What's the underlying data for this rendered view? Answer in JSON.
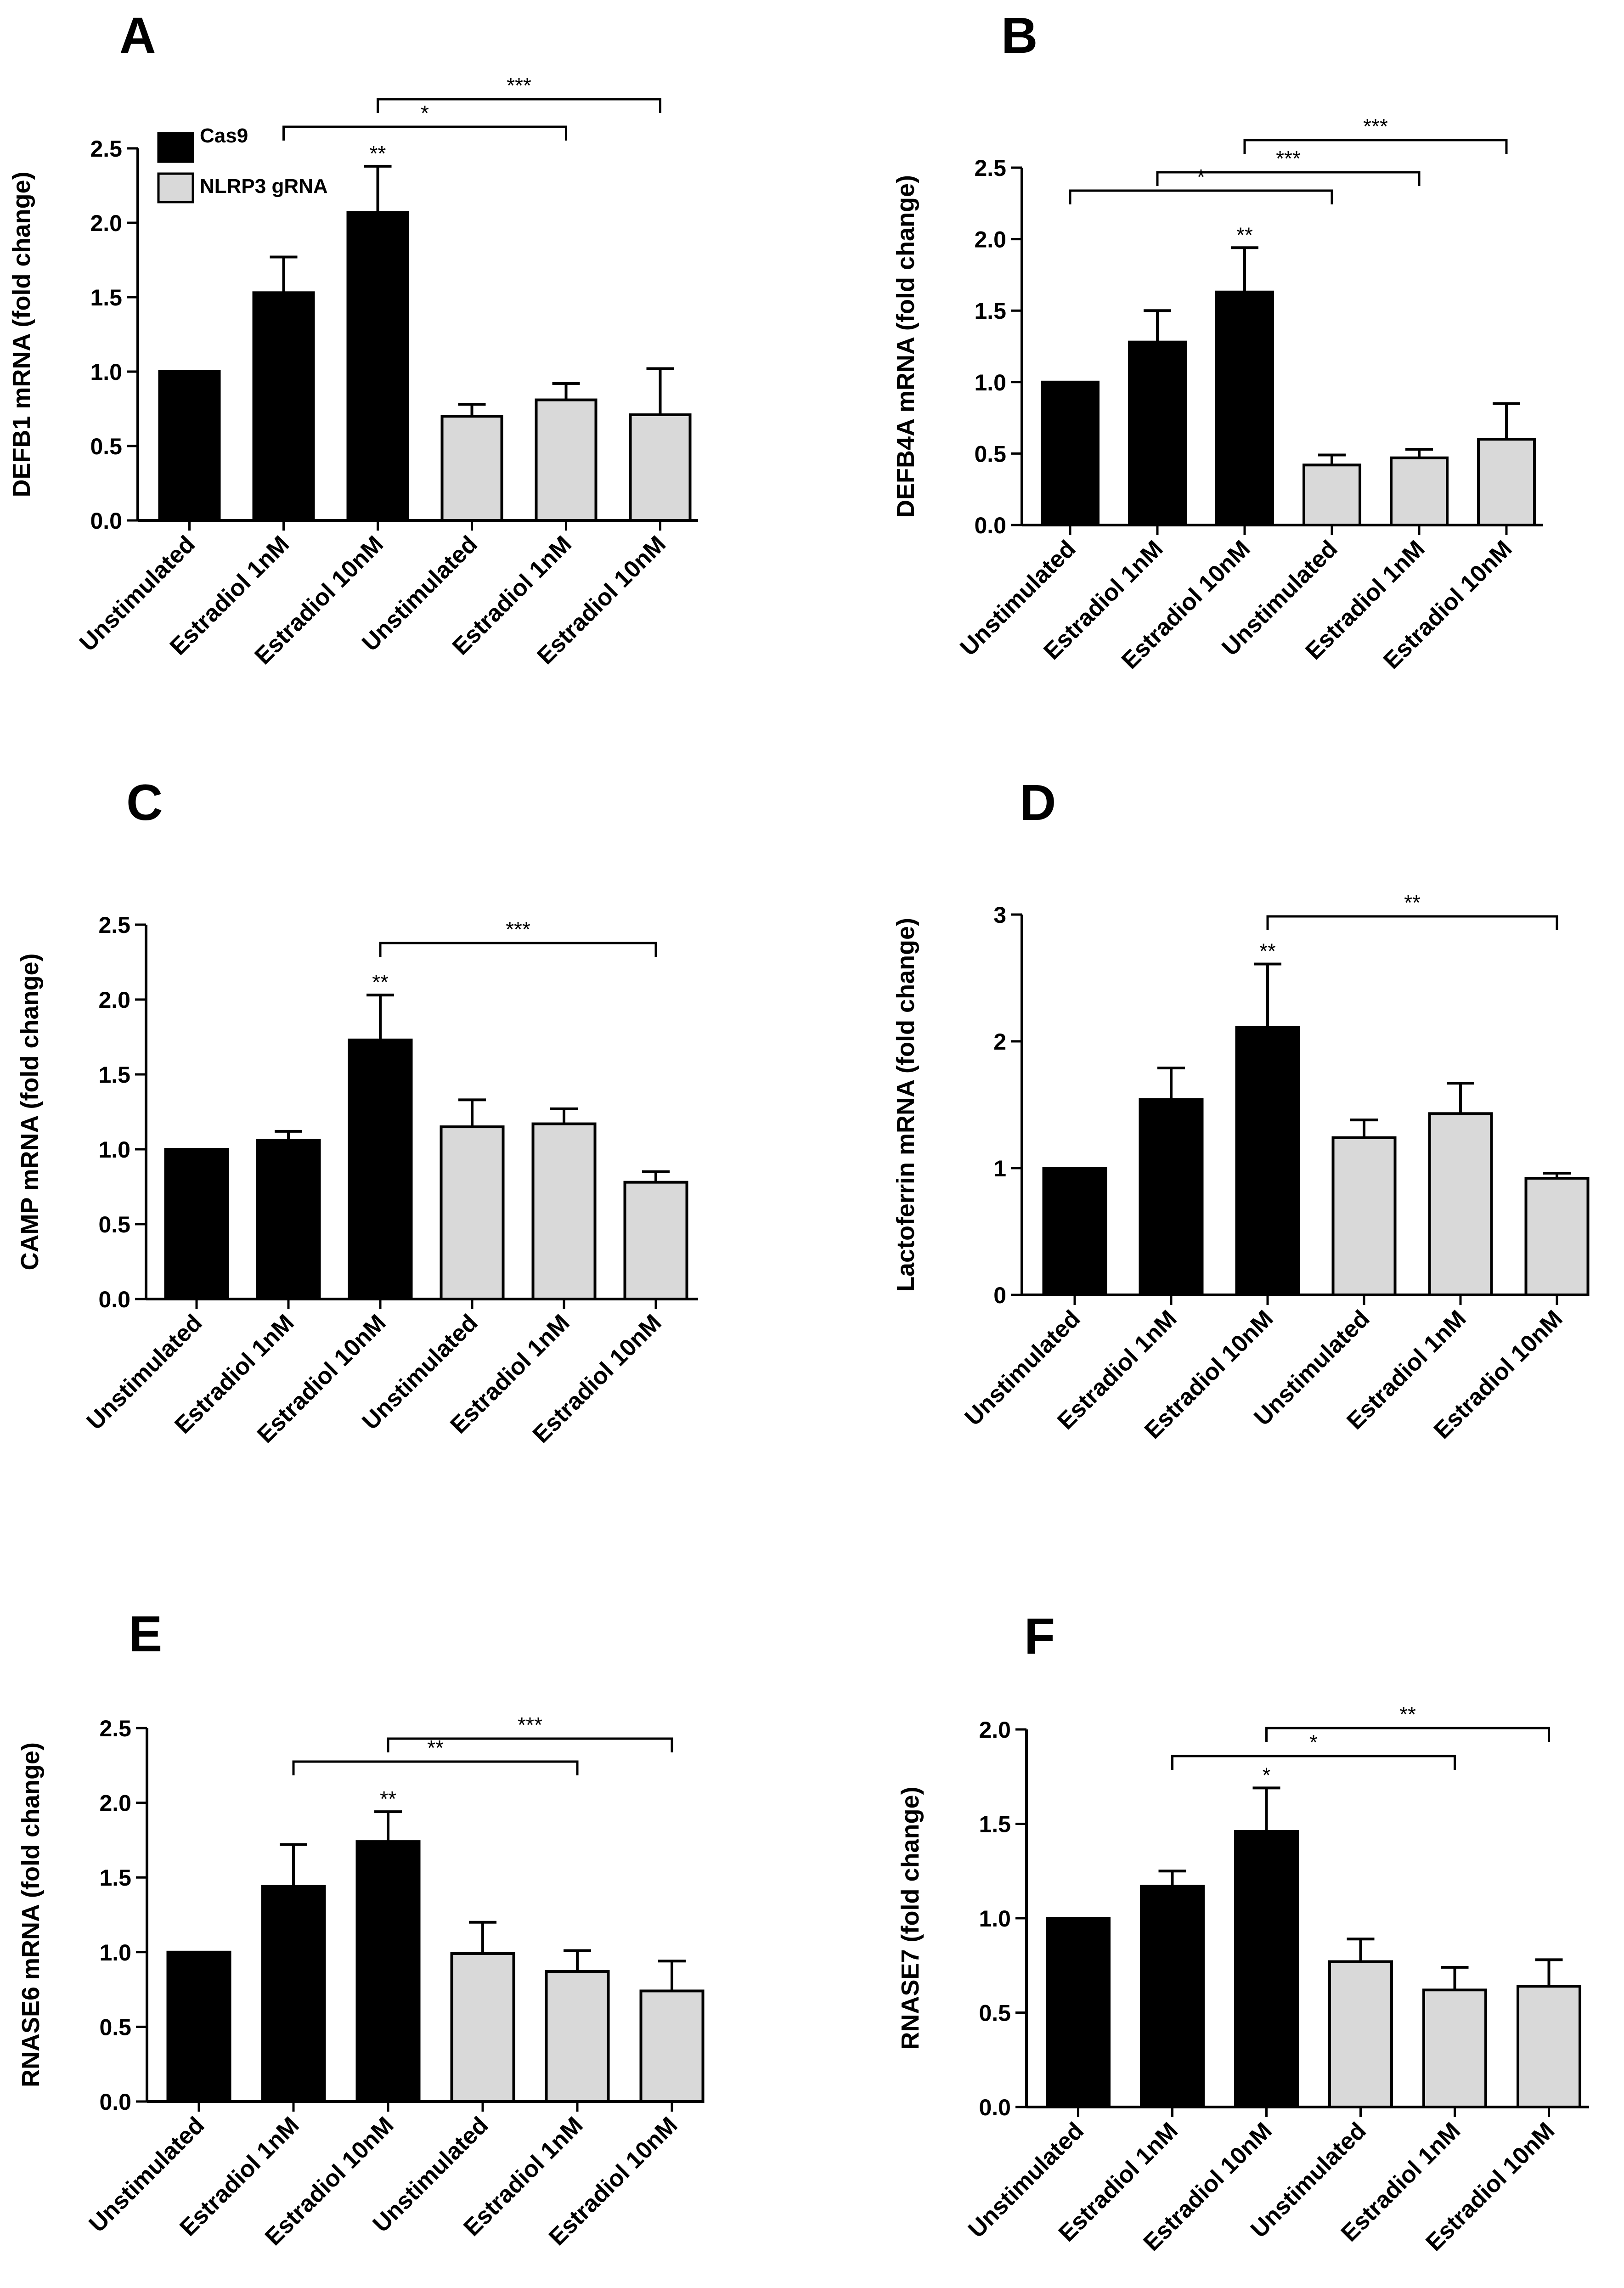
{
  "colors": {
    "cas9": "#000000",
    "nlrp3": "#d9d9d9",
    "axis": "#000000"
  },
  "legend": {
    "cas9_label": "Cas9",
    "nlrp3_label": "NLRP3 gRNA"
  },
  "chart_data": [
    {
      "panel": "A",
      "type": "bar",
      "ylabel": "DEFB1 mRNA (fold change)",
      "categories": [
        "Unstimulated",
        "Estradiol 1nM",
        "Estradiol 10nM",
        "Unstimulated",
        "Estradiol 1nM",
        "Estradiol 10nM"
      ],
      "groups": [
        "cas9",
        "cas9",
        "cas9",
        "nlrp3",
        "nlrp3",
        "nlrp3"
      ],
      "values": [
        1.0,
        1.53,
        2.07,
        0.7,
        0.81,
        0.71
      ],
      "errors": [
        0.0,
        0.24,
        0.31,
        0.08,
        0.11,
        0.31
      ],
      "ylim": [
        0,
        2.5
      ],
      "yticks": [
        0.0,
        0.5,
        1.0,
        1.5,
        2.0,
        2.5
      ],
      "ytick_labels": [
        "0.0",
        "0.5",
        "1.0",
        "1.5",
        "2.0",
        "2.5"
      ],
      "bar_stars": [
        {
          "index": 2,
          "label": "**"
        }
      ],
      "brackets": [
        {
          "from": 1,
          "to": 4,
          "label": "*"
        },
        {
          "from": 2,
          "to": 5,
          "label": "***"
        }
      ],
      "show_legend": true
    },
    {
      "panel": "B",
      "type": "bar",
      "ylabel": "DEFB4A mRNA (fold change)",
      "categories": [
        "Unstimulated",
        "Estradiol 1nM",
        "Estradiol 10nM",
        "Unstimulated",
        "Estradiol 1nM",
        "Estradiol 10nM"
      ],
      "groups": [
        "cas9",
        "cas9",
        "cas9",
        "nlrp3",
        "nlrp3",
        "nlrp3"
      ],
      "values": [
        1.0,
        1.28,
        1.63,
        0.42,
        0.47,
        0.6
      ],
      "errors": [
        0.0,
        0.22,
        0.31,
        0.07,
        0.06,
        0.25
      ],
      "ylim": [
        0,
        2.5
      ],
      "yticks": [
        0.0,
        0.5,
        1.0,
        1.5,
        2.0,
        2.5
      ],
      "ytick_labels": [
        "0.0",
        "0.5",
        "1.0",
        "1.5",
        "2.0",
        "2.5"
      ],
      "bar_stars": [
        {
          "index": 2,
          "label": "**"
        }
      ],
      "brackets": [
        {
          "from": 0,
          "to": 3,
          "label": "*"
        },
        {
          "from": 1,
          "to": 4,
          "label": "***"
        },
        {
          "from": 2,
          "to": 5,
          "label": "***"
        }
      ],
      "show_legend": false
    },
    {
      "panel": "C",
      "type": "bar",
      "ylabel": "CAMP mRNA (fold change)",
      "categories": [
        "Unstimulated",
        "Estradiol 1nM",
        "Estradiol 10nM",
        "Unstimulated",
        "Estradiol 1nM",
        "Estradiol 10nM"
      ],
      "groups": [
        "cas9",
        "cas9",
        "cas9",
        "nlrp3",
        "nlrp3",
        "nlrp3"
      ],
      "values": [
        1.0,
        1.06,
        1.73,
        1.15,
        1.17,
        0.78
      ],
      "errors": [
        0.0,
        0.06,
        0.3,
        0.18,
        0.1,
        0.07
      ],
      "ylim": [
        0,
        2.5
      ],
      "yticks": [
        0.0,
        0.5,
        1.0,
        1.5,
        2.0,
        2.5
      ],
      "ytick_labels": [
        "0.0",
        "0.5",
        "1.0",
        "1.5",
        "2.0",
        "2.5"
      ],
      "bar_stars": [
        {
          "index": 2,
          "label": "**"
        }
      ],
      "brackets": [
        {
          "from": 2,
          "to": 5,
          "label": "***"
        }
      ],
      "show_legend": false
    },
    {
      "panel": "D",
      "type": "bar",
      "ylabel": "Lactoferrin mRNA (fold change)",
      "categories": [
        "Unstimulated",
        "Estradiol 1nM",
        "Estradiol 10nM",
        "Unstimulated",
        "Estradiol 1nM",
        "Estradiol 10nM"
      ],
      "groups": [
        "cas9",
        "cas9",
        "cas9",
        "nlrp3",
        "nlrp3",
        "nlrp3"
      ],
      "values": [
        1.0,
        1.54,
        2.11,
        1.24,
        1.43,
        0.92
      ],
      "errors": [
        0.0,
        0.25,
        0.5,
        0.14,
        0.24,
        0.04
      ],
      "ylim": [
        0,
        3
      ],
      "yticks": [
        0,
        1,
        2,
        3
      ],
      "ytick_labels": [
        "0",
        "1",
        "2",
        "3"
      ],
      "bar_stars": [
        {
          "index": 2,
          "label": "**"
        }
      ],
      "brackets": [
        {
          "from": 2,
          "to": 5,
          "label": "**"
        }
      ],
      "show_legend": false
    },
    {
      "panel": "E",
      "type": "bar",
      "ylabel": "RNASE6 mRNA (fold change)",
      "categories": [
        "Unstimulated",
        "Estradiol 1nM",
        "Estradiol 10nM",
        "Unstimulated",
        "Estradiol 1nM",
        "Estradiol 10nM"
      ],
      "groups": [
        "cas9",
        "cas9",
        "cas9",
        "nlrp3",
        "nlrp3",
        "nlrp3"
      ],
      "values": [
        1.0,
        1.44,
        1.74,
        0.99,
        0.87,
        0.74
      ],
      "errors": [
        0.0,
        0.28,
        0.2,
        0.21,
        0.14,
        0.2
      ],
      "ylim": [
        0,
        2.5
      ],
      "yticks": [
        0.0,
        0.5,
        1.0,
        1.5,
        2.0,
        2.5
      ],
      "ytick_labels": [
        "0.0",
        "0.5",
        "1.0",
        "1.5",
        "2.0",
        "2.5"
      ],
      "bar_stars": [
        {
          "index": 2,
          "label": "**"
        }
      ],
      "brackets": [
        {
          "from": 1,
          "to": 4,
          "label": "**"
        },
        {
          "from": 2,
          "to": 5,
          "label": "***"
        }
      ],
      "show_legend": false
    },
    {
      "panel": "F",
      "type": "bar",
      "ylabel": "RNASE7 (fold change)",
      "categories": [
        "Unstimulated",
        "Estradiol 1nM",
        "Estradiol 10nM",
        "Unstimulated",
        "Estradiol 1nM",
        "Estradiol 10nM"
      ],
      "groups": [
        "cas9",
        "cas9",
        "cas9",
        "nlrp3",
        "nlrp3",
        "nlrp3"
      ],
      "values": [
        1.0,
        1.17,
        1.46,
        0.77,
        0.62,
        0.64
      ],
      "errors": [
        0.0,
        0.08,
        0.23,
        0.12,
        0.12,
        0.14
      ],
      "ylim": [
        0,
        2.0
      ],
      "yticks": [
        0.0,
        0.5,
        1.0,
        1.5,
        2.0
      ],
      "ytick_labels": [
        "0.0",
        "0.5",
        "1.0",
        "1.5",
        "2.0"
      ],
      "bar_stars": [
        {
          "index": 2,
          "label": "*"
        }
      ],
      "brackets": [
        {
          "from": 1,
          "to": 4,
          "label": "*"
        },
        {
          "from": 2,
          "to": 5,
          "label": "**"
        }
      ],
      "show_legend": false
    }
  ]
}
